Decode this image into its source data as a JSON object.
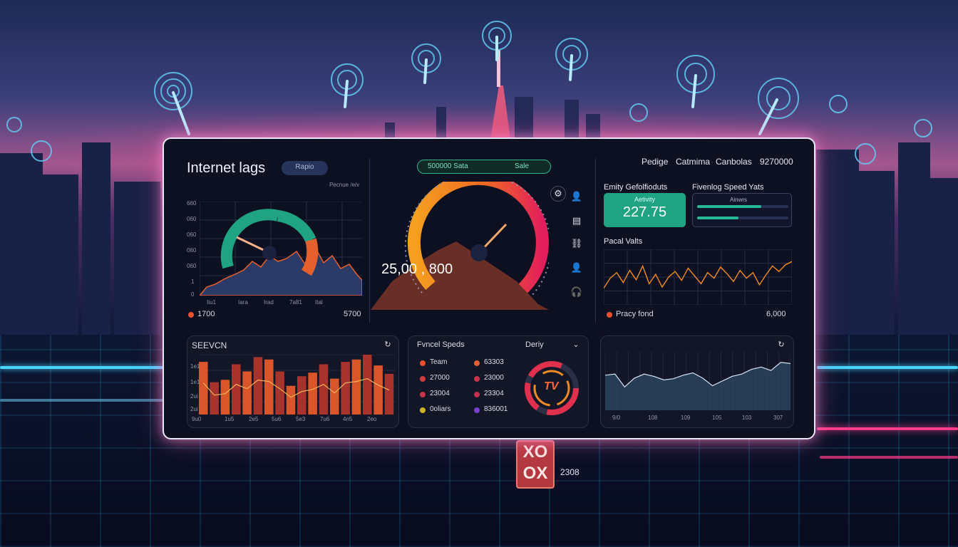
{
  "header": {
    "title": "Internet lags",
    "title_pill": "Rapio",
    "top_pill_left": "500000 Sata",
    "top_pill_right": "Sale",
    "nav": [
      "Pedige",
      "Catmima",
      "Canbolas",
      "9270000"
    ]
  },
  "panel_left_gauge": {
    "chart_caption": "Pecnue /e/v",
    "y_ticks": [
      "660",
      "060",
      "060",
      "060",
      "060",
      "1",
      "0"
    ],
    "x_ticks": [
      "Iiu1",
      "Iara",
      "Irad",
      "7a81",
      "Ital"
    ],
    "footer_left": "1700",
    "footer_right": "5700",
    "accent_dot": "#e8502f"
  },
  "panel_center_gauge": {
    "readout": "25,00 , 800",
    "side_icons": [
      "settings-icon",
      "user-icon",
      "device-icon",
      "link-icon",
      "person-icon",
      "headset-icon"
    ]
  },
  "panel_right": {
    "kpi_heading": "Emity Gefolfioduts",
    "kpi_label": "Aetivity",
    "kpi_value": "227.75",
    "speed_heading": "Fivenlog Speed Yats",
    "speed_box_label": "Ainwrs",
    "speed_bars": [
      0.7,
      0.45
    ],
    "line_heading": "Pacal Valts",
    "footer_left": "Pracy fond",
    "footer_right": "6,000"
  },
  "panel_bottom_left": {
    "title": "SEEVCN",
    "x_ticks": [
      "9u0",
      "1u5",
      "2e5",
      "5u6",
      "5e3",
      "7u6",
      "4n5",
      "2eo"
    ],
    "y_ticks": [
      "1e1",
      "1e1",
      "2ui",
      "2ui"
    ]
  },
  "panel_bottom_center": {
    "title": "Fvncel Speds",
    "subtitle": "Deriy",
    "legend": [
      {
        "label": "Team",
        "color": "#e8502f"
      },
      {
        "label": "63303",
        "color": "#e2602f"
      },
      {
        "label": "27000",
        "color": "#d23b3b"
      },
      {
        "label": "23000",
        "color": "#c9344a"
      },
      {
        "label": "23004",
        "color": "#c9344a"
      },
      {
        "label": "23304",
        "color": "#c2304b"
      },
      {
        "label": "0oliars",
        "color": "#c8b523"
      },
      {
        "label": "836001",
        "color": "#7b3fd1"
      }
    ],
    "ring_text": "TV"
  },
  "panel_bottom_right": {
    "x_ticks": [
      "9/0",
      "108",
      "109",
      "105",
      "103",
      "307"
    ]
  },
  "scene": {
    "billboard_text": "XO\nOX",
    "billboard_number": "2308"
  },
  "colors": {
    "accent_green": "#1fa383",
    "accent_orange": "#f08a24",
    "accent_red": "#e0304e",
    "bar_orange": "#d9552a",
    "bar_red": "#a8322c"
  },
  "chart_data": [
    {
      "type": "bar",
      "title": "SEEVCN",
      "categories": [
        "1",
        "2",
        "3",
        "4",
        "5",
        "6",
        "7",
        "8",
        "9",
        "10",
        "11",
        "12",
        "13",
        "14",
        "15",
        "16",
        "17",
        "18"
      ],
      "series": [
        {
          "values": [
            88,
            54,
            58,
            84,
            72,
            96,
            92,
            72,
            48,
            64,
            70,
            84,
            60,
            88,
            92,
            100,
            82,
            68
          ]
        }
      ],
      "ylim": [
        0,
        100
      ]
    },
    {
      "type": "line",
      "title": "Pacal Valts",
      "x": [
        1,
        2,
        3,
        4,
        5,
        6,
        7,
        8,
        9,
        10,
        11,
        12,
        13,
        14,
        15,
        16,
        17,
        18,
        19,
        20,
        21,
        22,
        23,
        24,
        25,
        26,
        27,
        28,
        29,
        30
      ],
      "series": [
        {
          "values": [
            30,
            48,
            58,
            40,
            62,
            45,
            70,
            38,
            55,
            32,
            50,
            60,
            44,
            66,
            52,
            38,
            58,
            48,
            68,
            56,
            42,
            62,
            48,
            58,
            36,
            54,
            70,
            60,
            72,
            78
          ]
        }
      ],
      "ylim": [
        0,
        100
      ]
    },
    {
      "type": "area",
      "x": [
        1,
        2,
        3,
        4,
        5,
        6,
        7,
        8,
        9,
        10,
        11,
        12,
        13,
        14,
        15,
        16,
        17,
        18,
        19,
        20
      ],
      "series": [
        {
          "values": [
            60,
            62,
            40,
            55,
            62,
            58,
            52,
            54,
            60,
            64,
            55,
            42,
            50,
            58,
            62,
            70,
            74,
            68,
            82,
            80
          ]
        }
      ],
      "ylim": [
        0,
        100
      ]
    },
    {
      "type": "area",
      "x": [
        1,
        2,
        3,
        4,
        5,
        6,
        7,
        8,
        9,
        10,
        11,
        12
      ],
      "series": [
        {
          "values": [
            10,
            28,
            22,
            40,
            30,
            52,
            38,
            60,
            44,
            35,
            24,
            18
          ]
        }
      ],
      "ylim": [
        0,
        100
      ]
    }
  ]
}
